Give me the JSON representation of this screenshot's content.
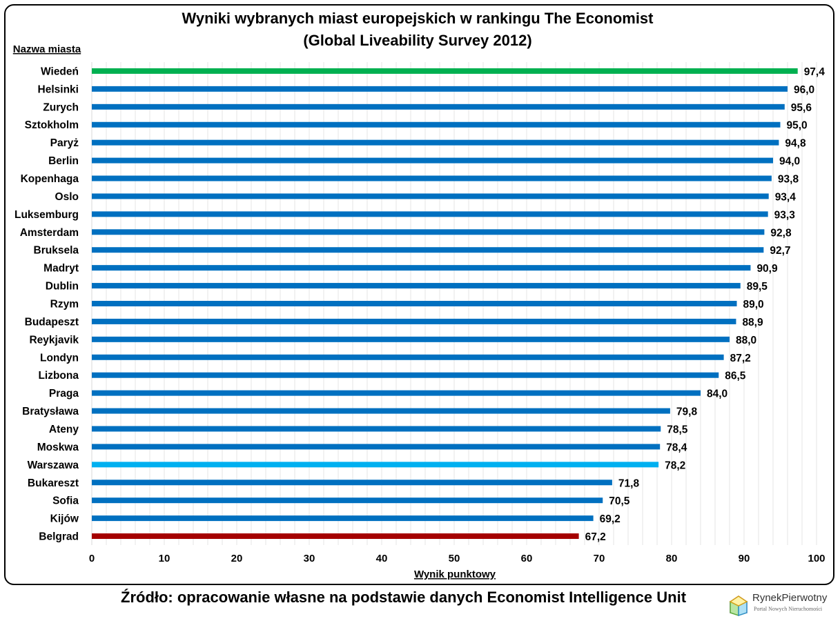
{
  "chart_data": {
    "type": "bar",
    "orientation": "horizontal",
    "title_line1": "Wyniki wybranych miast europejskich w rankingu The Economist",
    "title_line2": "(Global Liveability Survey 2012)",
    "ylabel": "Nazwa miasta",
    "xlabel": "Wynik punktowy",
    "xlim": [
      0,
      100
    ],
    "xticks": [
      "0",
      "10",
      "20",
      "30",
      "40",
      "50",
      "60",
      "70",
      "80",
      "90",
      "100"
    ],
    "grid": true,
    "categories": [
      "Wiedeń",
      "Helsinki",
      "Zurych",
      "Sztokholm",
      "Paryż",
      "Berlin",
      "Kopenhaga",
      "Oslo",
      "Luksemburg",
      "Amsterdam",
      "Bruksela",
      "Madryt",
      "Dublin",
      "Rzym",
      "Budapeszt",
      "Reykjavik",
      "Londyn",
      "Lizbona",
      "Praga",
      "Bratysława",
      "Ateny",
      "Moskwa",
      "Warszawa",
      "Bukareszt",
      "Sofia",
      "Kijów",
      "Belgrad"
    ],
    "values": [
      97.4,
      96.0,
      95.6,
      95.0,
      94.8,
      94.0,
      93.8,
      93.4,
      93.3,
      92.8,
      92.7,
      90.9,
      89.5,
      89.0,
      88.9,
      88.0,
      87.2,
      86.5,
      84.0,
      79.8,
      78.5,
      78.4,
      78.2,
      71.8,
      70.5,
      69.2,
      67.2
    ],
    "value_labels": [
      "97,4",
      "96,0",
      "95,6",
      "95,0",
      "94,8",
      "94,0",
      "93,8",
      "93,4",
      "93,3",
      "92,8",
      "92,7",
      "90,9",
      "89,5",
      "89,0",
      "88,9",
      "88,0",
      "87,2",
      "86,5",
      "84,0",
      "79,8",
      "78,5",
      "78,4",
      "78,2",
      "71,8",
      "70,5",
      "69,2",
      "67,2"
    ],
    "colors": {
      "default": "#0070c0",
      "highlight_top": "#00b050",
      "highlight_home": "#00b0f0",
      "highlight_bottom": "#a50000",
      "grid": "#e6e6e6"
    },
    "highlights": {
      "Wiedeń": "highlight_top",
      "Warszawa": "highlight_home",
      "Belgrad": "highlight_bottom"
    }
  },
  "source_text": "Źródło: opracowanie własne na podstawie danych Economist Intelligence Unit",
  "logo": {
    "brand": "RynekPierwotny",
    "tagline": "Portal Nowych Nieruchomości",
    "icon": "house-cube-icon"
  }
}
